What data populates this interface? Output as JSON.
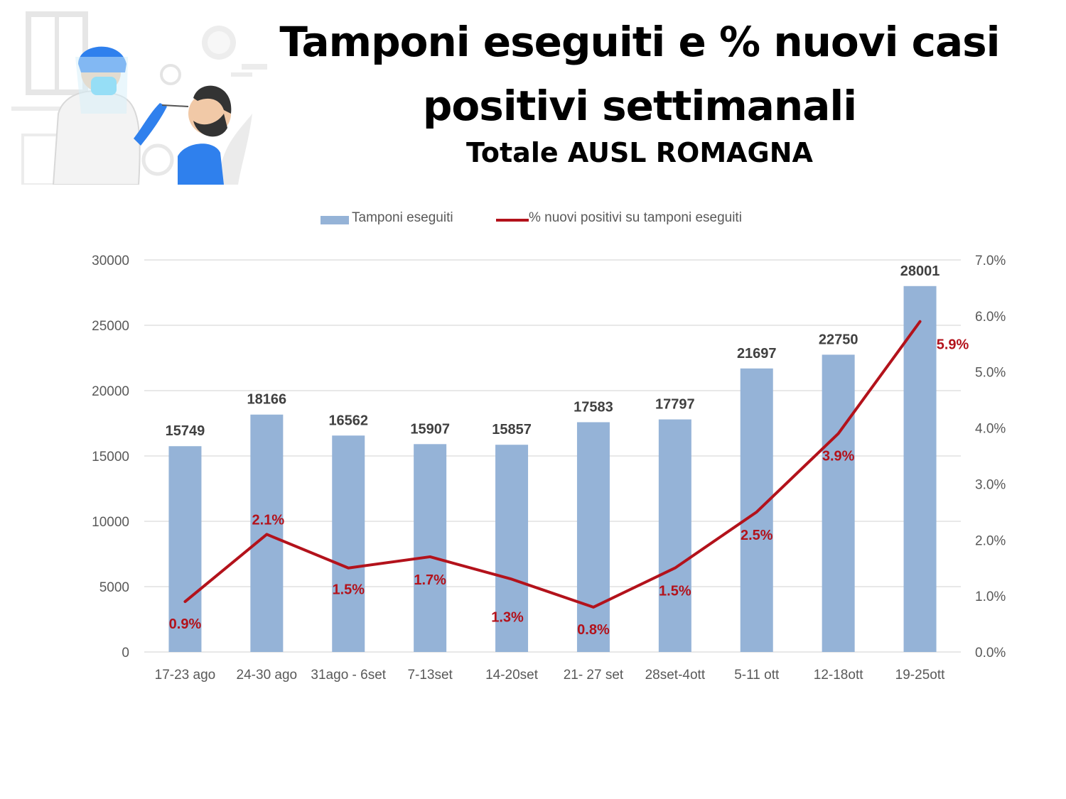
{
  "title": "Tamponi eseguiti e % nuovi casi positivi settimanali",
  "subtitle": "Totale AUSL ROMAGNA",
  "colors": {
    "bar": "#95b3d7",
    "line": "#b3121b",
    "bar_label": "#404040",
    "line_label": "#b3121b",
    "axis_text": "#595959",
    "grid": "#d9d9d9"
  },
  "chart_data": {
    "type": "bar",
    "categories": [
      "17-23 ago",
      "24-30 ago",
      "31ago - 6set",
      "7-13set",
      "14-20set",
      "21- 27 set",
      "28set-4ott",
      "5-11 ott",
      "12-18ott",
      "19-25ott"
    ],
    "series": [
      {
        "name": "Tamponi eseguiti",
        "type": "bar",
        "axis": "left",
        "values": [
          15749,
          18166,
          16562,
          15907,
          15857,
          17583,
          17797,
          21697,
          22750,
          28001
        ],
        "labels": [
          "15749",
          "18166",
          "16562",
          "15907",
          "15857",
          "17583",
          "17797",
          "21697",
          "22750",
          "28001"
        ]
      },
      {
        "name": "% nuovi positivi su tamponi eseguiti",
        "type": "line",
        "axis": "right",
        "values": [
          0.9,
          2.1,
          1.5,
          1.7,
          1.3,
          0.8,
          1.5,
          2.5,
          3.9,
          5.9
        ],
        "labels": [
          "0.9%",
          "2.1%",
          "1.5%",
          "1.7%",
          "1.3%",
          "0.8%",
          "1.5%",
          "2.5%",
          "3.9%",
          "5.9%"
        ]
      }
    ],
    "ylim": [
      0,
      30000
    ],
    "yticks": [
      "0",
      "5000",
      "10000",
      "15000",
      "20000",
      "25000",
      "30000"
    ],
    "y2lim": [
      0,
      7
    ],
    "y2ticks": [
      "0.0%",
      "1.0%",
      "2.0%",
      "3.0%",
      "4.0%",
      "5.0%",
      "6.0%",
      "7.0%"
    ],
    "grid": true,
    "legend_position": "top"
  }
}
